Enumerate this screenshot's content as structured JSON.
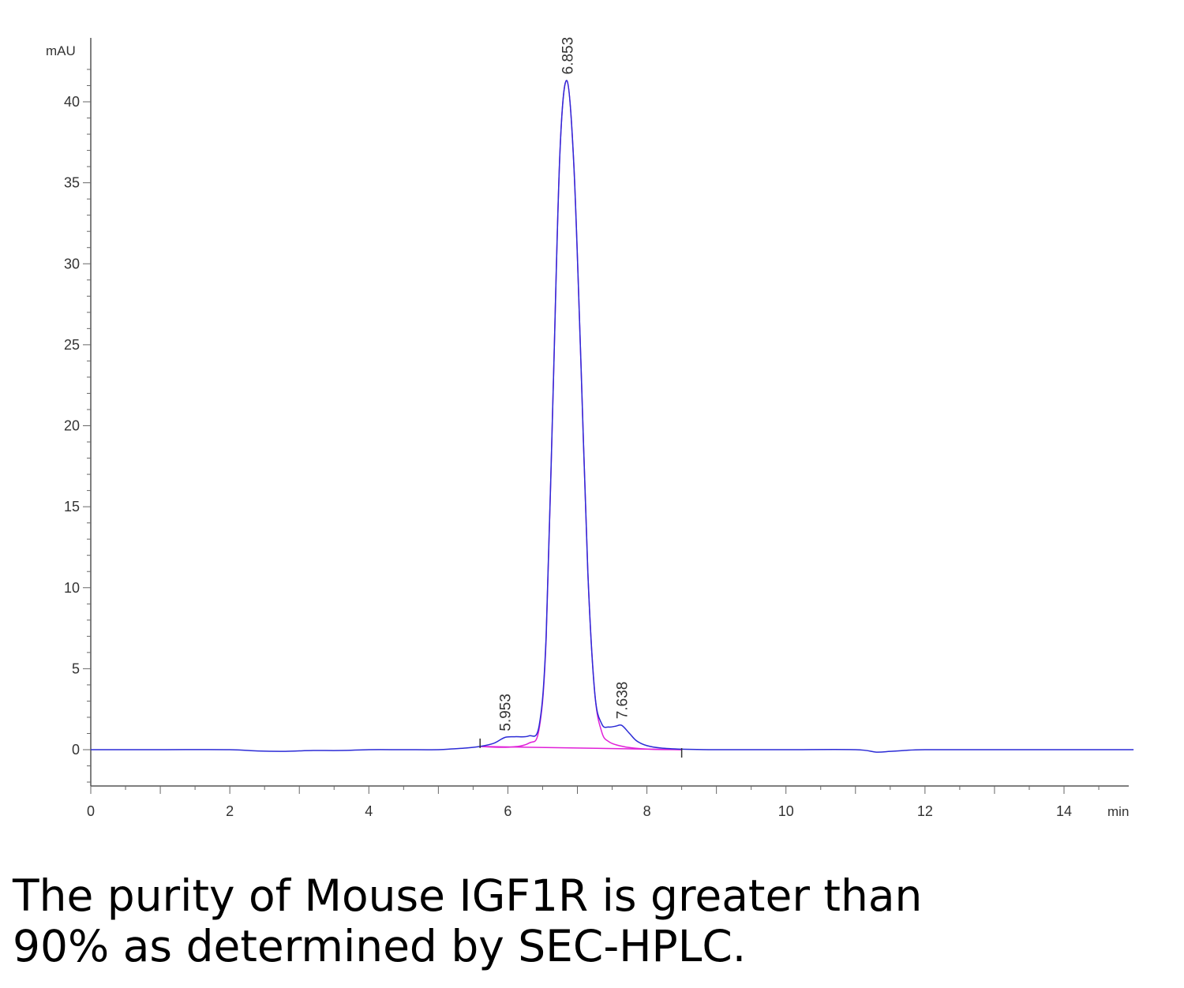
{
  "caption": {
    "line1": "The purity of Mouse IGF1R is greater than",
    "line2": "90% as determined by SEC-HPLC."
  },
  "chart_data": {
    "type": "line",
    "title": "",
    "ylabel": "mAU",
    "xlabel": "min",
    "xlim": [
      0,
      15
    ],
    "ylim": [
      -2.2,
      43
    ],
    "x_ticks": [
      0,
      2,
      4,
      6,
      8,
      10,
      12,
      14
    ],
    "y_ticks": [
      0,
      5,
      10,
      15,
      20,
      25,
      30,
      35,
      40
    ],
    "grid": false,
    "colors": {
      "signal": "#2b2bd6",
      "fit": "#e020d8",
      "axis": "#000000",
      "label": "#333333"
    },
    "peaks": [
      {
        "label": "5.953",
        "rt": 5.953,
        "height": 0.75
      },
      {
        "label": "6.853",
        "rt": 6.853,
        "height": 41.3
      },
      {
        "label": "7.638",
        "rt": 7.638,
        "height": 1.5
      }
    ],
    "baseline": {
      "start": 5.6,
      "end": 8.5
    },
    "series": [
      {
        "name": "",
        "x": [
          0,
          1,
          2,
          2.4,
          2.8,
          3.2,
          3.6,
          4,
          4.5,
          5,
          5.2,
          5.4,
          5.6,
          5.8,
          5.953,
          6.1,
          6.3,
          6.45,
          6.55,
          6.65,
          6.75,
          6.85,
          6.95,
          7.05,
          7.15,
          7.25,
          7.35,
          7.45,
          7.55,
          7.638,
          7.75,
          7.85,
          8.0,
          8.2,
          8.5,
          9,
          10,
          11,
          11.3,
          11.5,
          11.7,
          12,
          13,
          14,
          15
        ],
        "y": [
          0,
          0,
          0,
          -0.08,
          -0.1,
          -0.05,
          -0.05,
          0,
          0,
          0,
          0.05,
          0.1,
          0.2,
          0.4,
          0.75,
          0.8,
          0.85,
          1.5,
          7,
          22,
          37,
          41.3,
          36,
          24,
          11,
          3.5,
          1.6,
          1.4,
          1.45,
          1.5,
          1.0,
          0.55,
          0.25,
          0.1,
          0.03,
          0,
          0,
          0,
          -0.15,
          -0.1,
          -0.05,
          0,
          0,
          0,
          0
        ]
      },
      {
        "name": "",
        "x": [
          5.6,
          6.0,
          6.3,
          6.45,
          6.55,
          6.65,
          6.75,
          6.85,
          6.95,
          7.05,
          7.15,
          7.25,
          7.35,
          7.45,
          7.6,
          7.8,
          8.1,
          8.5
        ],
        "y": [
          0.2,
          0.15,
          0.4,
          1.3,
          6.8,
          22,
          37,
          41.3,
          36,
          24,
          11,
          3.5,
          1.1,
          0.5,
          0.25,
          0.1,
          0.02,
          0
        ]
      }
    ]
  }
}
